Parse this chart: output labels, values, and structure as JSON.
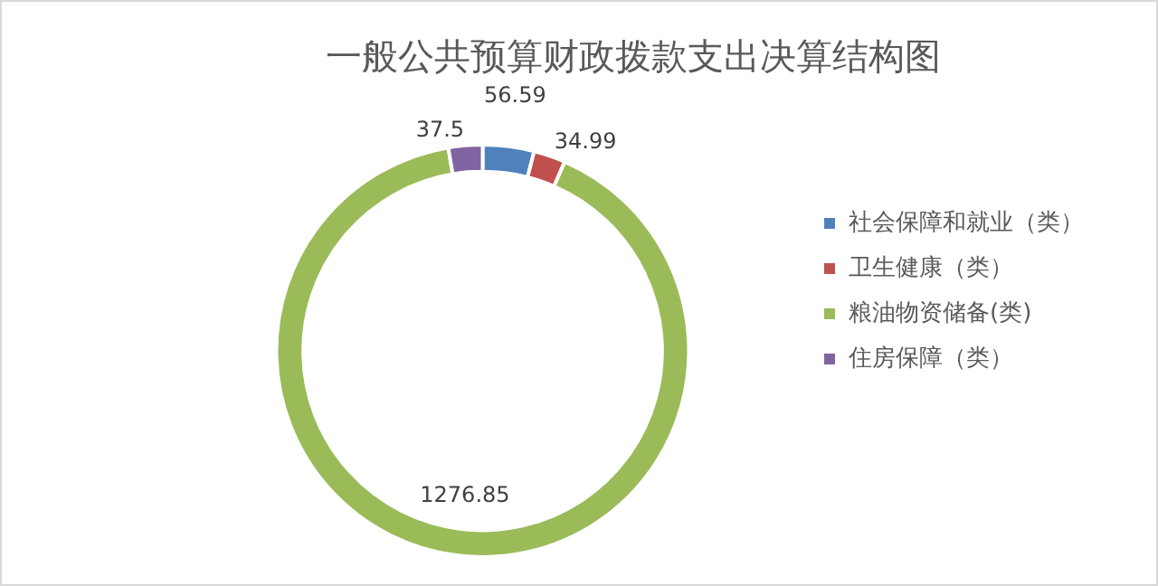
{
  "chart_data": {
    "type": "donut",
    "title": "一般公共预算财政拨款支出决算结构图",
    "categories": [
      "社会保障和就业（类）",
      "卫生健康（类）",
      "粮油物资储备(类)",
      "住房保障（类）"
    ],
    "values": [
      56.59,
      34.99,
      1276.85,
      37.5
    ],
    "colors": [
      "#4f81bd",
      "#c0504d",
      "#9bbb59",
      "#8064a2"
    ],
    "data_labels": true,
    "legend": "right"
  }
}
